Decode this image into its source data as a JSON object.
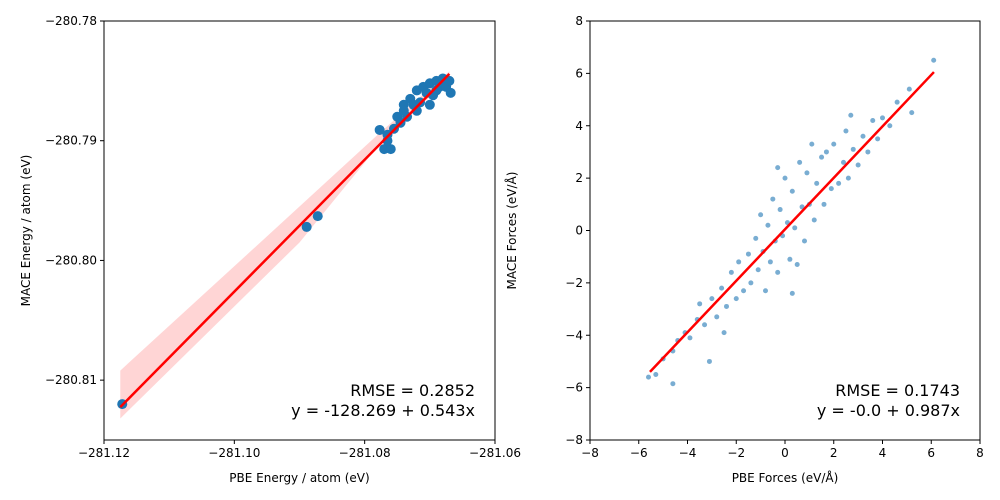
{
  "chart_data": [
    {
      "type": "scatter",
      "x_label": "PBE Energy / atom (eV)",
      "y_label": "MACE Energy / atom (eV)",
      "xlim": [
        -281.12,
        -281.06
      ],
      "ylim": [
        -280.815,
        -280.78
      ],
      "xticks": [
        {
          "value": -281.12,
          "label": "−281.12"
        },
        {
          "value": -281.1,
          "label": "−281.10"
        },
        {
          "value": -281.08,
          "label": "−281.08"
        },
        {
          "value": -281.06,
          "label": "−281.06"
        }
      ],
      "yticks": [
        {
          "value": -280.81,
          "label": "−280.81"
        },
        {
          "value": -280.8,
          "label": "−280.80"
        },
        {
          "value": -280.79,
          "label": "−280.79"
        },
        {
          "value": -280.78,
          "label": "−280.78"
        }
      ],
      "color": "#1f77b4",
      "marker_size": 5,
      "alpha": 1,
      "x": [
        -281.1172,
        -281.0889,
        -281.0872,
        -281.0777,
        -281.077,
        -281.0765,
        -281.076,
        -281.0755,
        -281.075,
        -281.0745,
        -281.074,
        -281.0735,
        -281.073,
        -281.0725,
        -281.072,
        -281.0715,
        -281.071,
        -281.0705,
        -281.07,
        -281.0695,
        -281.069,
        -281.0685,
        -281.068,
        -281.0675,
        -281.067,
        -281.0668,
        -281.0765,
        -281.074,
        -281.072,
        -281.07,
        -281.069
      ],
      "y": [
        -280.812,
        -280.7972,
        -280.7963,
        -280.7891,
        -280.7907,
        -280.7895,
        -280.7907,
        -280.789,
        -280.788,
        -280.7885,
        -280.787,
        -280.788,
        -280.7865,
        -280.787,
        -280.7858,
        -280.7868,
        -280.7855,
        -280.786,
        -280.7852,
        -280.7862,
        -280.785,
        -280.7855,
        -280.7848,
        -280.7855,
        -280.785,
        -280.786,
        -280.79,
        -280.7875,
        -280.7875,
        -280.787,
        -280.7858
      ],
      "fit_line": {
        "x": [
          -281.1175,
          -281.067
        ],
        "y": [
          -280.81225,
          -280.78442
        ],
        "color": "#ff0000"
      },
      "band": {
        "x": [
          -281.1175,
          -281.09,
          -281.078,
          -281.067
        ],
        "upper": [
          -280.8092,
          -280.7955,
          -280.7895,
          -280.7842
        ],
        "lower": [
          -280.8132,
          -280.7985,
          -280.7905,
          -280.7848
        ],
        "color": "#ffb3b3"
      },
      "annotations": [
        "RMSE = 0.2852",
        "y = -128.269 + 0.543x"
      ]
    },
    {
      "type": "scatter",
      "x_label": "PBE Forces (eV/Å)",
      "y_label": "MACE Forces (eV/Å)",
      "xlim": [
        -8,
        8
      ],
      "ylim": [
        -8,
        8
      ],
      "xticks": [
        {
          "value": -8,
          "label": "−8"
        },
        {
          "value": -6,
          "label": "−6"
        },
        {
          "value": -4,
          "label": "−4"
        },
        {
          "value": -2,
          "label": "−2"
        },
        0,
        2,
        4,
        6,
        8
      ],
      "yticks": [
        {
          "value": -8,
          "label": "−8"
        },
        {
          "value": -6,
          "label": "−6"
        },
        {
          "value": -4,
          "label": "−4"
        },
        {
          "value": -2,
          "label": "−2"
        },
        0,
        2,
        4,
        6,
        8
      ],
      "color": "#1f77b4",
      "marker_size": 2.5,
      "alpha": 0.6,
      "x": [
        -5.6,
        -5.3,
        -4.6,
        -4.6,
        -4.4,
        -4.1,
        -3.9,
        -3.6,
        -3.3,
        -3.1,
        -3.0,
        -2.8,
        -2.6,
        -2.4,
        -2.2,
        -2.0,
        -1.9,
        -1.7,
        -1.5,
        -1.4,
        -1.2,
        -1.1,
        -1.0,
        -0.9,
        -0.8,
        -0.7,
        -0.6,
        -0.5,
        -0.4,
        -0.3,
        -0.2,
        -0.1,
        0,
        0.1,
        0.2,
        0.3,
        0.4,
        0.5,
        0.6,
        0.7,
        0.8,
        0.9,
        1.0,
        1.1,
        1.2,
        1.3,
        1.5,
        1.6,
        1.7,
        1.9,
        2.0,
        2.2,
        2.4,
        2.5,
        2.6,
        2.8,
        3.0,
        3.2,
        3.4,
        3.6,
        3.8,
        4.0,
        4.3,
        4.6,
        5.1,
        5.2,
        6.1,
        -5.0,
        -3.5,
        -2.5,
        0.3,
        -0.3,
        2.7
      ],
      "y": [
        -5.6,
        -5.5,
        -5.85,
        -4.6,
        -4.2,
        -3.9,
        -4.1,
        -3.4,
        -3.6,
        -5.0,
        -2.6,
        -3.3,
        -2.2,
        -2.9,
        -1.6,
        -2.6,
        -1.2,
        -2.3,
        -0.9,
        -2.0,
        -0.3,
        -1.5,
        0.6,
        -0.8,
        -2.3,
        0.2,
        -1.2,
        1.2,
        -0.4,
        -1.6,
        0.8,
        -0.2,
        2.0,
        0.3,
        -1.1,
        1.5,
        0.1,
        -1.3,
        2.6,
        0.9,
        -0.4,
        2.2,
        1.0,
        3.3,
        0.4,
        1.8,
        2.8,
        1.0,
        3.0,
        1.6,
        3.3,
        1.8,
        2.6,
        3.8,
        2.0,
        3.1,
        2.5,
        3.6,
        3.0,
        4.2,
        3.5,
        4.3,
        4.0,
        4.9,
        5.4,
        4.5,
        6.5,
        -4.9,
        -2.8,
        -3.9,
        -2.4,
        2.4,
        4.4
      ],
      "fit_line": {
        "x": [
          -5.54,
          6.11
        ],
        "y": [
          -5.4,
          6.05
        ],
        "color": "#ff0000"
      },
      "annotations": [
        "RMSE = 0.1743",
        "y = -0.0 + 0.987x"
      ]
    }
  ]
}
